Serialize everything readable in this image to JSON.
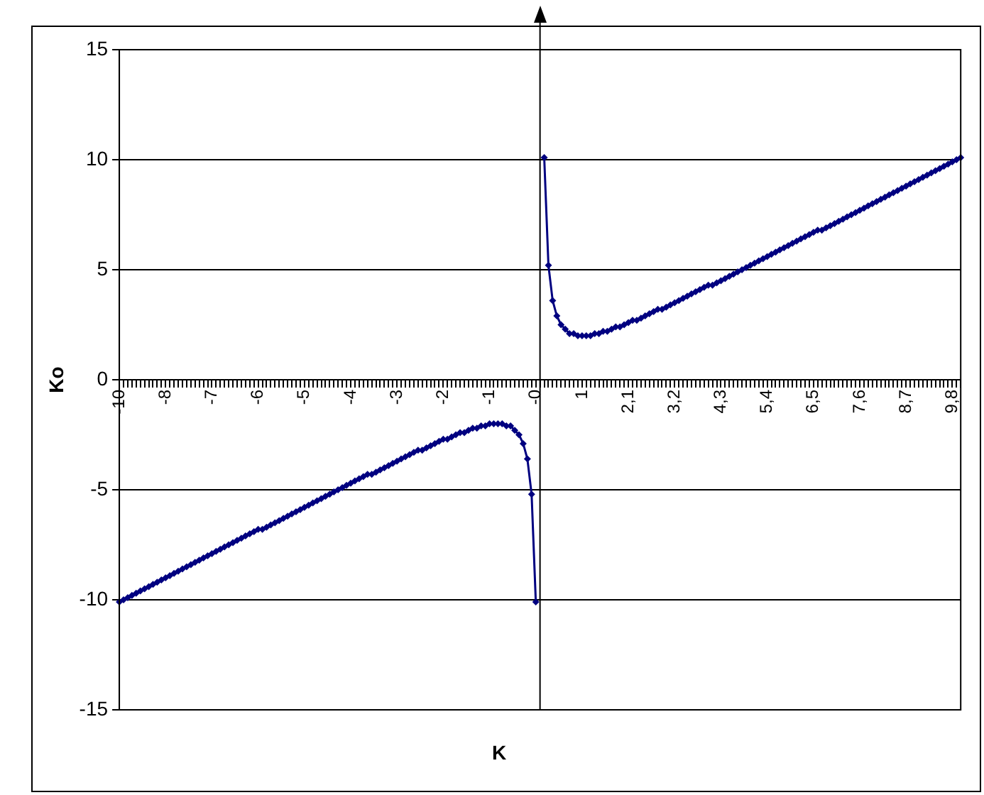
{
  "chart_data": {
    "type": "line",
    "xlabel": "K",
    "ylabel": "Ko",
    "categories": [
      "-10",
      null,
      null,
      null,
      null,
      null,
      null,
      null,
      null,
      null,
      null,
      "-8",
      null,
      null,
      null,
      null,
      null,
      null,
      null,
      null,
      null,
      null,
      "-7",
      null,
      null,
      null,
      null,
      null,
      null,
      null,
      null,
      null,
      null,
      "-6",
      null,
      null,
      null,
      null,
      null,
      null,
      null,
      null,
      null,
      null,
      "-5",
      null,
      null,
      null,
      null,
      null,
      null,
      null,
      null,
      null,
      null,
      "-4",
      null,
      null,
      null,
      null,
      null,
      null,
      null,
      null,
      null,
      null,
      "-3",
      null,
      null,
      null,
      null,
      null,
      null,
      null,
      null,
      null,
      null,
      "-2",
      null,
      null,
      null,
      null,
      null,
      null,
      null,
      null,
      null,
      null,
      "-1",
      null,
      null,
      null,
      null,
      null,
      null,
      null,
      null,
      null,
      null,
      "-0",
      null,
      null,
      null,
      null,
      null,
      null,
      null,
      null,
      null,
      null,
      "1",
      null,
      null,
      null,
      null,
      null,
      null,
      null,
      null,
      null,
      null,
      "2,1",
      null,
      null,
      null,
      null,
      null,
      null,
      null,
      null,
      null,
      null,
      "3,2",
      null,
      null,
      null,
      null,
      null,
      null,
      null,
      null,
      null,
      null,
      "4,3",
      null,
      null,
      null,
      null,
      null,
      null,
      null,
      null,
      null,
      null,
      "5,4",
      null,
      null,
      null,
      null,
      null,
      null,
      null,
      null,
      null,
      null,
      "6,5",
      null,
      null,
      null,
      null,
      null,
      null,
      null,
      null,
      null,
      null,
      "7,6",
      null,
      null,
      null,
      null,
      null,
      null,
      null,
      null,
      null,
      null,
      "8,7",
      null,
      null,
      null,
      null,
      null,
      null,
      null,
      null,
      null,
      null,
      "9,8",
      null,
      null
    ],
    "series": [
      {
        "color": "#000080",
        "values": [
          -10.1,
          -10.0,
          -9.9,
          -9.8,
          -9.7,
          -9.6,
          -9.5,
          -9.4,
          -9.3,
          -9.2,
          -9.1,
          -9.0,
          -8.9,
          -8.8,
          -8.7,
          -8.6,
          -8.5,
          -8.4,
          -8.3,
          -8.2,
          -8.1,
          -8.0,
          -7.9,
          -7.8,
          -7.7,
          -7.6,
          -7.5,
          -7.4,
          -7.3,
          -7.2,
          -7.1,
          -7.0,
          -6.9,
          -6.8,
          -6.8,
          -6.7,
          -6.6,
          -6.5,
          -6.4,
          -6.3,
          -6.2,
          -6.1,
          -6.0,
          -5.9,
          -5.8,
          -5.7,
          -5.6,
          -5.5,
          -5.4,
          -5.3,
          -5.2,
          -5.1,
          -5.0,
          -4.9,
          -4.8,
          -4.7,
          -4.6,
          -4.5,
          -4.4,
          -4.3,
          -4.3,
          -4.2,
          -4.1,
          -4.0,
          -3.9,
          -3.8,
          -3.7,
          -3.6,
          -3.5,
          -3.4,
          -3.3,
          -3.2,
          -3.2,
          -3.1,
          -3.0,
          -2.9,
          -2.8,
          -2.7,
          -2.7,
          -2.6,
          -2.5,
          -2.4,
          -2.4,
          -2.3,
          -2.2,
          -2.2,
          -2.1,
          -2.1,
          -2.0,
          -2.0,
          -2.0,
          -2.0,
          -2.1,
          -2.1,
          -2.3,
          -2.5,
          -2.9,
          -3.6,
          -5.2,
          -10.1,
          null,
          10.1,
          5.2,
          3.6,
          2.9,
          2.5,
          2.3,
          2.1,
          2.1,
          2.0,
          2.0,
          2.0,
          2.0,
          2.1,
          2.1,
          2.2,
          2.2,
          2.3,
          2.4,
          2.4,
          2.5,
          2.6,
          2.7,
          2.7,
          2.8,
          2.9,
          3.0,
          3.1,
          3.2,
          3.2,
          3.3,
          3.4,
          3.5,
          3.6,
          3.7,
          3.8,
          3.9,
          4.0,
          4.1,
          4.2,
          4.3,
          4.3,
          4.4,
          4.5,
          4.6,
          4.7,
          4.8,
          4.9,
          5.0,
          5.1,
          5.2,
          5.3,
          5.4,
          5.5,
          5.6,
          5.7,
          5.8,
          5.9,
          6.0,
          6.1,
          6.2,
          6.3,
          6.4,
          6.5,
          6.6,
          6.7,
          6.8,
          6.8,
          6.9,
          7.0,
          7.1,
          7.2,
          7.3,
          7.4,
          7.5,
          7.6,
          7.7,
          7.8,
          7.9,
          8.0,
          8.1,
          8.2,
          8.3,
          8.4,
          8.5,
          8.6,
          8.7,
          8.8,
          8.9,
          9.0,
          9.1,
          9.2,
          9.3,
          9.4,
          9.5,
          9.6,
          9.7,
          9.8,
          9.9,
          10.0,
          10.1
        ]
      }
    ],
    "ylim": [
      -15,
      15
    ],
    "yticks": [
      -15,
      -10,
      -5,
      0,
      5,
      10,
      15
    ],
    "grid": "y",
    "legend": false,
    "marker": "diamond",
    "line_style": "solid"
  }
}
